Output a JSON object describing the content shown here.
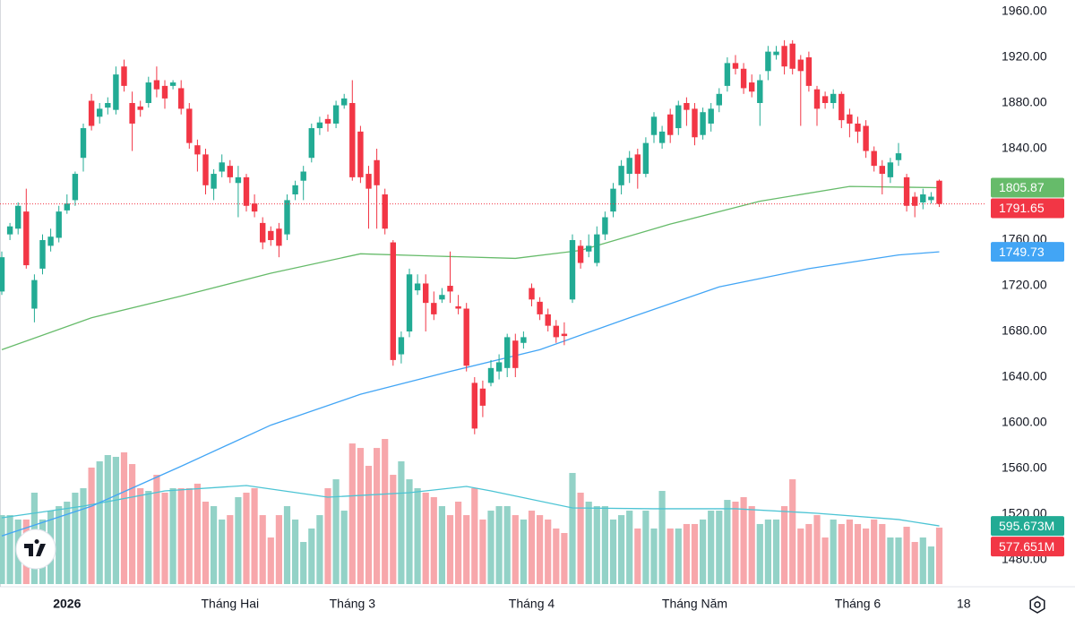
{
  "chart_data": {
    "type": "candlestick",
    "colors": {
      "up": "#22ab94",
      "down": "#f23645",
      "volume_up": "#93d2c7",
      "volume_down": "#f7a7ab"
    },
    "open": [
      1715,
      1765,
      1770,
      1785,
      1700,
      1735,
      1755,
      1762,
      1786,
      1795,
      1832,
      1882,
      1868,
      1876,
      1874,
      1912,
      1880,
      1877,
      1880,
      1900,
      1895,
      1895,
      1893,
      1875,
      1843,
      1835,
      1805,
      1820,
      1825,
      1810,
      1815,
      1792,
      1775,
      1768,
      1770,
      1765,
      1800,
      1812,
      1832,
      1858,
      1866,
      1862,
      1878,
      1880,
      1855,
      1818,
      1830,
      1800,
      1758,
      1660,
      1680,
      1716,
      1722,
      1705,
      1708,
      1720,
      1702,
      1700,
      1635,
      1630,
      1635,
      1645,
      1648,
      1672,
      1670,
      1718,
      1706,
      1695,
      1685,
      1678,
      1708,
      1755,
      1750,
      1740,
      1765,
      1785,
      1808,
      1818,
      1835,
      1818,
      1852,
      1845,
      1870,
      1858,
      1880,
      1875,
      1852,
      1862,
      1878,
      1895,
      1915,
      1910,
      1898,
      1880,
      1908,
      1922,
      1930,
      1932,
      1918,
      1920,
      1892,
      1886,
      1880,
      1888,
      1870,
      1862,
      1860,
      1838,
      1825,
      1815,
      1830,
      1815,
      1798,
      1793,
      1795,
      1812
    ],
    "high": [
      1750,
      1775,
      1793,
      1805,
      1730,
      1765,
      1770,
      1790,
      1800,
      1820,
      1862,
      1888,
      1880,
      1885,
      1912,
      1918,
      1890,
      1882,
      1903,
      1912,
      1900,
      1900,
      1900,
      1880,
      1848,
      1840,
      1822,
      1835,
      1830,
      1825,
      1818,
      1800,
      1780,
      1772,
      1775,
      1800,
      1812,
      1825,
      1862,
      1868,
      1870,
      1882,
      1888,
      1900,
      1860,
      1825,
      1840,
      1805,
      1760,
      1680,
      1735,
      1730,
      1730,
      1715,
      1718,
      1750,
      1712,
      1705,
      1640,
      1637,
      1655,
      1660,
      1678,
      1678,
      1680,
      1722,
      1710,
      1700,
      1690,
      1688,
      1765,
      1760,
      1765,
      1772,
      1785,
      1810,
      1830,
      1838,
      1840,
      1850,
      1872,
      1860,
      1875,
      1882,
      1885,
      1880,
      1876,
      1880,
      1893,
      1920,
      1922,
      1915,
      1905,
      1905,
      1930,
      1930,
      1935,
      1935,
      1922,
      1925,
      1895,
      1890,
      1892,
      1890,
      1875,
      1868,
      1865,
      1842,
      1830,
      1832,
      1845,
      1818,
      1802,
      1805,
      1802,
      1813
    ],
    "low": [
      1712,
      1760,
      1765,
      1735,
      1688,
      1730,
      1750,
      1758,
      1783,
      1790,
      1820,
      1856,
      1862,
      1870,
      1870,
      1890,
      1838,
      1868,
      1876,
      1885,
      1875,
      1892,
      1870,
      1840,
      1820,
      1800,
      1795,
      1815,
      1810,
      1780,
      1785,
      1780,
      1752,
      1755,
      1745,
      1760,
      1795,
      1795,
      1828,
      1852,
      1855,
      1858,
      1875,
      1812,
      1810,
      1770,
      1770,
      1765,
      1650,
      1652,
      1675,
      1712,
      1680,
      1690,
      1705,
      1705,
      1695,
      1645,
      1590,
      1605,
      1632,
      1638,
      1640,
      1640,
      1665,
      1702,
      1690,
      1680,
      1670,
      1668,
      1705,
      1735,
      1745,
      1737,
      1760,
      1780,
      1800,
      1810,
      1805,
      1815,
      1845,
      1840,
      1845,
      1852,
      1860,
      1843,
      1848,
      1855,
      1872,
      1890,
      1905,
      1888,
      1885,
      1860,
      1900,
      1918,
      1905,
      1905,
      1860,
      1890,
      1860,
      1875,
      1875,
      1858,
      1850,
      1845,
      1832,
      1820,
      1800,
      1810,
      1825,
      1785,
      1780,
      1787,
      1792,
      1789
    ],
    "close": [
      1745,
      1772,
      1790,
      1738,
      1725,
      1760,
      1763,
      1785,
      1792,
      1818,
      1858,
      1860,
      1875,
      1880,
      1905,
      1895,
      1862,
      1874,
      1898,
      1892,
      1884,
      1898,
      1875,
      1845,
      1835,
      1808,
      1818,
      1828,
      1815,
      1815,
      1790,
      1785,
      1758,
      1760,
      1755,
      1795,
      1808,
      1820,
      1858,
      1863,
      1862,
      1878,
      1884,
      1815,
      1815,
      1805,
      1808,
      1770,
      1655,
      1675,
      1730,
      1722,
      1705,
      1695,
      1712,
      1715,
      1700,
      1650,
      1595,
      1615,
      1648,
      1653,
      1675,
      1648,
      1675,
      1708,
      1695,
      1685,
      1675,
      1676,
      1760,
      1740,
      1755,
      1765,
      1780,
      1805,
      1825,
      1832,
      1818,
      1845,
      1868,
      1855,
      1852,
      1878,
      1874,
      1850,
      1872,
      1875,
      1888,
      1915,
      1910,
      1893,
      1890,
      1900,
      1925,
      1925,
      1912,
      1910,
      1908,
      1895,
      1875,
      1880,
      1888,
      1865,
      1862,
      1855,
      1838,
      1825,
      1818,
      1828,
      1836,
      1790,
      1790,
      1800,
      1798,
      1791.65
    ],
    "volume": [
      706,
      706,
      661,
      661,
      936,
      661,
      752,
      798,
      844,
      936,
      982,
      1193,
      1257,
      1321,
      1303,
      1349,
      1229,
      982,
      954,
      1119,
      936,
      982,
      982,
      982,
      1028,
      844,
      798,
      661,
      706,
      890,
      936,
      982,
      706,
      477,
      706,
      798,
      661,
      431,
      569,
      706,
      982,
      1073,
      752,
      1440,
      1394,
      1211,
      1394,
      1486,
      1119,
      1257,
      1073,
      982,
      936,
      890,
      798,
      706,
      844,
      706,
      982,
      661,
      752,
      798,
      798,
      706,
      661,
      752,
      706,
      661,
      569,
      523,
      1138,
      936,
      844,
      798,
      798,
      661,
      706,
      752,
      569,
      752,
      569,
      954,
      569,
      569,
      615,
      615,
      661,
      752,
      752,
      862,
      844,
      890,
      798,
      615,
      661,
      661,
      798,
      1073,
      569,
      615,
      706,
      477,
      661,
      615,
      661,
      615,
      569,
      661,
      615,
      477,
      477,
      587,
      431,
      477,
      385,
      577.651
    ],
    "volume_last_label": "577.651M",
    "lines": [
      {
        "color": "#66bb6a",
        "x": [
          0,
          11,
          22,
          33,
          44,
          53,
          63,
          71,
          82,
          93,
          104,
          115
        ],
        "values": [
          1664,
          1692,
          1711,
          1731,
          1748,
          1746,
          1744,
          1751,
          1774,
          1794,
          1807,
          1805.87
        ]
      },
      {
        "color": "#42a5f5",
        "x": [
          0,
          11,
          22,
          33,
          44,
          55,
          66,
          77,
          88,
          99,
          110,
          115
        ],
        "values": [
          1501,
          1527,
          1562,
          1598,
          1625,
          1645,
          1664,
          1692,
          1719,
          1735,
          1747,
          1749.73
        ]
      }
    ],
    "volume_ma": {
      "color": "#4cc4d4",
      "label_color": "#22ab94",
      "x": [
        0,
        10,
        20,
        30,
        40,
        50,
        57,
        60,
        70,
        80,
        90,
        100,
        110,
        115
      ],
      "values": [
        679,
        798,
        954,
        1009,
        890,
        936,
        1000,
        954,
        780,
        771,
        771,
        725,
        661,
        595.673
      ],
      "last_label": "595.673M"
    },
    "xlim": [
      -0.22,
      120.66
    ],
    "ylim": [
      1456.5,
      1970.2
    ],
    "vlim": [
      0,
      1500
    ],
    "xticks": [
      {
        "value": 8,
        "label": "2026"
      },
      {
        "value": 28,
        "label": "Tháng Hai"
      },
      {
        "value": 43,
        "label": "Tháng 3"
      },
      {
        "value": 65,
        "label": "Tháng 4"
      },
      {
        "value": 85,
        "label": "Tháng Năm"
      },
      {
        "value": 105,
        "label": "Tháng 6"
      },
      {
        "value": 118,
        "label": "18"
      }
    ],
    "yticks": [
      {
        "value": 1480,
        "label": "1480.00"
      },
      {
        "value": 1520,
        "label": "1520.00"
      },
      {
        "value": 1560,
        "label": "1560.00"
      },
      {
        "value": 1600,
        "label": "1600.00"
      },
      {
        "value": 1640,
        "label": "1640.00"
      },
      {
        "value": 1680,
        "label": "1680.00"
      },
      {
        "value": 1720,
        "label": "1720.00"
      },
      {
        "value": 1760,
        "label": "1760.00"
      },
      {
        "value": 1800,
        "label": "1800.00"
      },
      {
        "value": 1840,
        "label": "1840.00"
      },
      {
        "value": 1880,
        "label": "1880.00"
      },
      {
        "value": 1920,
        "label": "1920.00"
      },
      {
        "value": 1960,
        "label": "1960.00"
      }
    ]
  }
}
